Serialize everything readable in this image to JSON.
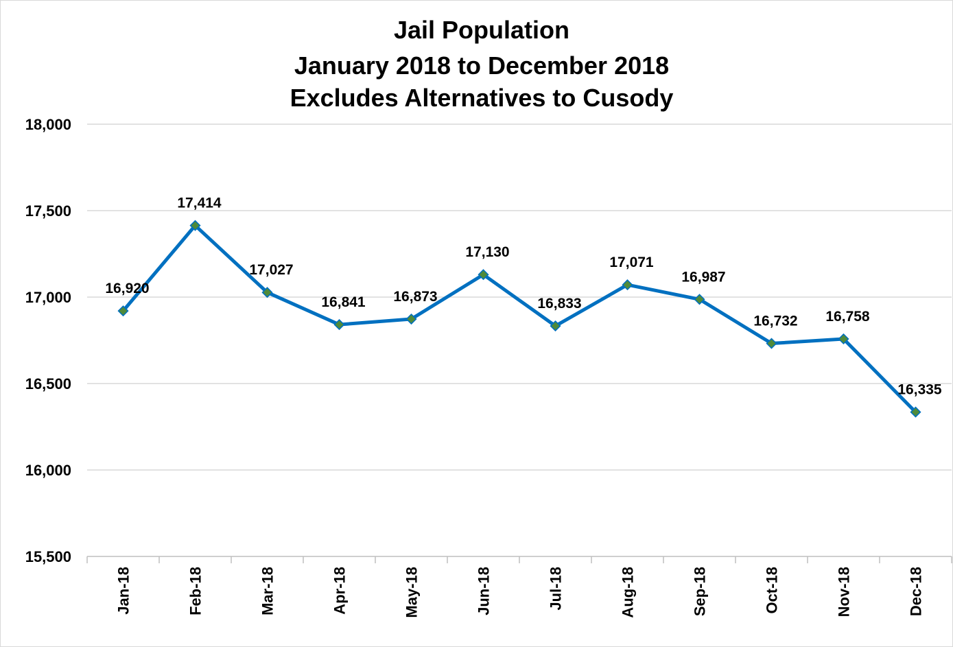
{
  "chart_data": {
    "type": "line",
    "title": "Jail Population",
    "subtitle": [
      "January 2018 to December 2018",
      "Excludes Alternatives to Cusody"
    ],
    "categories": [
      "Jan-18",
      "Feb-18",
      "Mar-18",
      "Apr-18",
      "May-18",
      "Jun-18",
      "Jul-18",
      "Aug-18",
      "Sep-18",
      "Oct-18",
      "Nov-18",
      "Dec-18"
    ],
    "values": [
      16920,
      17414,
      17027,
      16841,
      16873,
      17130,
      16833,
      17071,
      16987,
      16732,
      16758,
      16335
    ],
    "value_labels": [
      "16,920",
      "17,414",
      "17,027",
      "16,841",
      "16,873",
      "17,130",
      "16,833",
      "17,071",
      "16,987",
      "16,732",
      "16,758",
      "16,335"
    ],
    "color": "#0070c0",
    "marker_color": "#4f8a3a",
    "ylim": [
      15500,
      18000
    ],
    "yticks": [
      {
        "value": 15500,
        "label": "15,500"
      },
      {
        "value": 16000,
        "label": "16,000"
      },
      {
        "value": 16500,
        "label": "16,500"
      },
      {
        "value": 17000,
        "label": "17,000"
      },
      {
        "value": 17500,
        "label": "17,500"
      },
      {
        "value": 18000,
        "label": "18,000"
      }
    ],
    "grid": true
  }
}
